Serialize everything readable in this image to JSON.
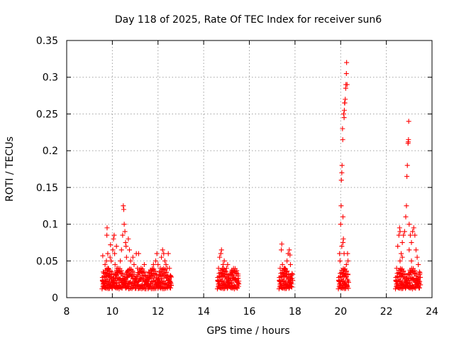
{
  "chart_data": {
    "type": "scatter",
    "title": "Day 118 of 2025, Rate Of TEC Index for receiver sun6",
    "xlabel": "GPS time / hours",
    "ylabel": "ROTI / TECUs",
    "xlim": [
      8,
      24
    ],
    "ylim": [
      0,
      0.35
    ],
    "x_ticks": [
      8,
      10,
      12,
      14,
      16,
      18,
      20,
      22,
      24
    ],
    "x_tick_labels": [
      "8",
      "10",
      "12",
      "14",
      "16",
      "18",
      "20",
      "22",
      "24"
    ],
    "y_ticks": [
      0,
      0.05,
      0.1,
      0.15,
      0.2,
      0.25,
      0.3,
      0.35
    ],
    "y_tick_labels": [
      "0",
      "0.05",
      "0.1",
      "0.15",
      "0.2",
      "0.25",
      "0.3",
      "0.35"
    ],
    "grid": true,
    "marker": "+",
    "series_color": "#ff0000",
    "series": [
      {
        "name": "ROTI",
        "points": [
          [
            9.58,
            0.057
          ],
          [
            9.6,
            0.035
          ],
          [
            9.62,
            0.02
          ],
          [
            9.65,
            0.015
          ],
          [
            9.68,
            0.045
          ],
          [
            9.7,
            0.022
          ],
          [
            9.72,
            0.03
          ],
          [
            9.74,
            0.05
          ],
          [
            9.76,
            0.085
          ],
          [
            9.77,
            0.095
          ],
          [
            9.8,
            0.06
          ],
          [
            9.82,
            0.04
          ],
          [
            9.85,
            0.03
          ],
          [
            9.88,
            0.025
          ],
          [
            9.9,
            0.055
          ],
          [
            9.92,
            0.072
          ],
          [
            9.95,
            0.05
          ],
          [
            9.98,
            0.035
          ],
          [
            10.0,
            0.02
          ],
          [
            10.02,
            0.065
          ],
          [
            10.05,
            0.08
          ],
          [
            10.08,
            0.085
          ],
          [
            10.1,
            0.06
          ],
          [
            10.12,
            0.045
          ],
          [
            10.15,
            0.03
          ],
          [
            10.18,
            0.07
          ],
          [
            10.2,
            0.04
          ],
          [
            10.25,
            0.035
          ],
          [
            10.3,
            0.02
          ],
          [
            10.35,
            0.05
          ],
          [
            10.4,
            0.065
          ],
          [
            10.45,
            0.085
          ],
          [
            10.48,
            0.125
          ],
          [
            10.5,
            0.12
          ],
          [
            10.52,
            0.1
          ],
          [
            10.55,
            0.09
          ],
          [
            10.58,
            0.075
          ],
          [
            10.6,
            0.07
          ],
          [
            10.62,
            0.055
          ],
          [
            10.65,
            0.035
          ],
          [
            10.7,
            0.08
          ],
          [
            10.75,
            0.065
          ],
          [
            10.8,
            0.05
          ],
          [
            10.85,
            0.03
          ],
          [
            10.9,
            0.055
          ],
          [
            10.95,
            0.045
          ],
          [
            11.0,
            0.025
          ],
          [
            11.05,
            0.06
          ],
          [
            11.1,
            0.04
          ],
          [
            11.15,
            0.06
          ],
          [
            11.2,
            0.035
          ],
          [
            11.3,
            0.03
          ],
          [
            11.4,
            0.045
          ],
          [
            11.5,
            0.02
          ],
          [
            11.6,
            0.035
          ],
          [
            11.7,
            0.03
          ],
          [
            11.8,
            0.045
          ],
          [
            11.9,
            0.05
          ],
          [
            11.95,
            0.06
          ],
          [
            12.0,
            0.045
          ],
          [
            12.05,
            0.035
          ],
          [
            12.1,
            0.04
          ],
          [
            12.15,
            0.055
          ],
          [
            12.2,
            0.065
          ],
          [
            12.25,
            0.06
          ],
          [
            12.3,
            0.05
          ],
          [
            12.35,
            0.045
          ],
          [
            12.4,
            0.04
          ],
          [
            12.45,
            0.06
          ],
          [
            12.5,
            0.04
          ],
          [
            12.55,
            0.03
          ],
          [
            14.65,
            0.04
          ],
          [
            14.7,
            0.055
          ],
          [
            14.75,
            0.06
          ],
          [
            14.78,
            0.065
          ],
          [
            14.8,
            0.03
          ],
          [
            14.85,
            0.045
          ],
          [
            14.9,
            0.05
          ],
          [
            14.95,
            0.035
          ],
          [
            15.0,
            0.04
          ],
          [
            15.05,
            0.045
          ],
          [
            15.1,
            0.03
          ],
          [
            15.2,
            0.035
          ],
          [
            15.3,
            0.03
          ],
          [
            15.4,
            0.025
          ],
          [
            15.5,
            0.02
          ],
          [
            17.35,
            0.04
          ],
          [
            17.4,
            0.065
          ],
          [
            17.42,
            0.073
          ],
          [
            17.45,
            0.045
          ],
          [
            17.5,
            0.03
          ],
          [
            17.55,
            0.04
          ],
          [
            17.6,
            0.035
          ],
          [
            17.65,
            0.05
          ],
          [
            17.7,
            0.06
          ],
          [
            17.75,
            0.065
          ],
          [
            17.78,
            0.058
          ],
          [
            17.8,
            0.045
          ],
          [
            17.85,
            0.03
          ],
          [
            19.95,
            0.06
          ],
          [
            19.97,
            0.05
          ],
          [
            20.0,
            0.1
          ],
          [
            20.02,
            0.125
          ],
          [
            20.03,
            0.16
          ],
          [
            20.05,
            0.17
          ],
          [
            20.06,
            0.18
          ],
          [
            20.08,
            0.23
          ],
          [
            20.09,
            0.215
          ],
          [
            20.1,
            0.075
          ],
          [
            20.12,
            0.08
          ],
          [
            20.13,
            0.25
          ],
          [
            20.15,
            0.245
          ],
          [
            20.16,
            0.255
          ],
          [
            20.17,
            0.265
          ],
          [
            20.18,
            0.265
          ],
          [
            20.2,
            0.27
          ],
          [
            20.22,
            0.285
          ],
          [
            20.23,
            0.29
          ],
          [
            20.25,
            0.305
          ],
          [
            20.26,
            0.32
          ],
          [
            20.28,
            0.29
          ],
          [
            20.3,
            0.06
          ],
          [
            20.32,
            0.05
          ],
          [
            20.1,
            0.11
          ],
          [
            20.05,
            0.07
          ],
          [
            20.15,
            0.06
          ],
          [
            20.25,
            0.045
          ],
          [
            22.45,
            0.04
          ],
          [
            22.5,
            0.07
          ],
          [
            22.55,
            0.085
          ],
          [
            22.58,
            0.095
          ],
          [
            22.6,
            0.09
          ],
          [
            22.65,
            0.06
          ],
          [
            22.7,
            0.075
          ],
          [
            22.75,
            0.085
          ],
          [
            22.8,
            0.09
          ],
          [
            22.85,
            0.11
          ],
          [
            22.88,
            0.125
          ],
          [
            22.9,
            0.165
          ],
          [
            22.92,
            0.18
          ],
          [
            22.95,
            0.21
          ],
          [
            22.96,
            0.212
          ],
          [
            22.97,
            0.215
          ],
          [
            22.98,
            0.24
          ],
          [
            23.0,
            0.1
          ],
          [
            23.05,
            0.085
          ],
          [
            23.1,
            0.075
          ],
          [
            23.15,
            0.09
          ],
          [
            23.2,
            0.095
          ],
          [
            23.25,
            0.085
          ],
          [
            23.3,
            0.065
          ],
          [
            23.35,
            0.055
          ],
          [
            23.4,
            0.045
          ],
          [
            23.45,
            0.035
          ],
          [
            22.6,
            0.05
          ],
          [
            22.7,
            0.055
          ],
          [
            23.0,
            0.065
          ],
          [
            23.1,
            0.05
          ]
        ]
      }
    ]
  }
}
